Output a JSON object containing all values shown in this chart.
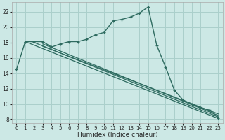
{
  "xlabel": "Humidex (Indice chaleur)",
  "bg_color": "#cce8e5",
  "grid_color": "#aacfcb",
  "line_color": "#2e6b60",
  "xlim": [
    -0.5,
    23.5
  ],
  "ylim": [
    7.5,
    23.2
  ],
  "yticks": [
    8,
    10,
    12,
    14,
    16,
    18,
    20,
    22
  ],
  "xticks": [
    0,
    1,
    2,
    3,
    4,
    5,
    6,
    7,
    8,
    9,
    10,
    11,
    12,
    13,
    14,
    15,
    16,
    17,
    18,
    19,
    20,
    21,
    22,
    23
  ],
  "curve_main_x": [
    0,
    1,
    2,
    3,
    4,
    5,
    6,
    7,
    8,
    9,
    10,
    11,
    12,
    13,
    14,
    15,
    16,
    17,
    18,
    19,
    20,
    21,
    22,
    23
  ],
  "curve_main_y": [
    14.5,
    18.1,
    18.1,
    18.1,
    17.4,
    17.8,
    18.1,
    18.1,
    18.4,
    19.0,
    19.3,
    20.8,
    21.0,
    21.3,
    21.8,
    22.6,
    17.6,
    14.8,
    11.8,
    10.5,
    10.0,
    9.5,
    9.2,
    8.2
  ],
  "line1_x": [
    1,
    23
  ],
  "line1_y": [
    18.1,
    8.1
  ],
  "line2_x": [
    2,
    23
  ],
  "line2_y": [
    18.0,
    8.3
  ],
  "line3_x": [
    3,
    23
  ],
  "line3_y": [
    17.8,
    8.5
  ],
  "line4_x": [
    3,
    23
  ],
  "line4_y": [
    17.5,
    8.7
  ]
}
